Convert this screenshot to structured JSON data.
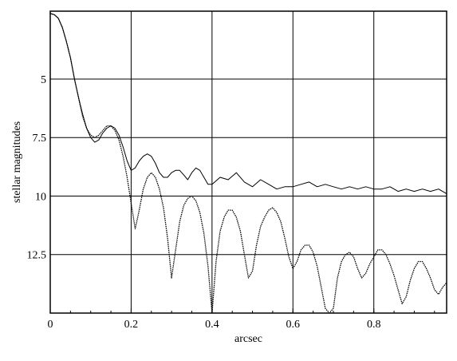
{
  "chart_data": {
    "type": "line",
    "title": "",
    "xlabel": "arcsec",
    "ylabel": "stellar magnitudes",
    "xlim": [
      0,
      0.98
    ],
    "ylim": [
      15,
      2.1
    ],
    "y_inverted": true,
    "grid": true,
    "x_ticks": [
      0,
      0.2,
      0.4,
      0.6,
      0.8
    ],
    "x_tick_labels": [
      "0",
      "0.2",
      "0.4",
      "0.6",
      "0.8"
    ],
    "y_ticks": [
      5,
      7.5,
      10,
      12.5
    ],
    "y_tick_labels": [
      "5",
      "7.5",
      "10",
      "12.5"
    ],
    "series": [
      {
        "style": "solid",
        "x": [
          0,
          0.01,
          0.02,
          0.03,
          0.04,
          0.05,
          0.06,
          0.07,
          0.08,
          0.09,
          0.1,
          0.11,
          0.12,
          0.13,
          0.14,
          0.15,
          0.16,
          0.17,
          0.18,
          0.19,
          0.2,
          0.21,
          0.22,
          0.23,
          0.24,
          0.25,
          0.26,
          0.27,
          0.28,
          0.29,
          0.3,
          0.31,
          0.32,
          0.33,
          0.34,
          0.35,
          0.36,
          0.37,
          0.38,
          0.39,
          0.4,
          0.42,
          0.44,
          0.46,
          0.48,
          0.5,
          0.52,
          0.54,
          0.56,
          0.58,
          0.6,
          0.62,
          0.64,
          0.66,
          0.68,
          0.7,
          0.72,
          0.74,
          0.76,
          0.78,
          0.8,
          0.82,
          0.84,
          0.86,
          0.88,
          0.9,
          0.92,
          0.94,
          0.96,
          0.98
        ],
        "y": [
          2.2,
          2.25,
          2.4,
          2.8,
          3.4,
          4.1,
          5.0,
          5.8,
          6.5,
          7.1,
          7.5,
          7.7,
          7.6,
          7.3,
          7.1,
          7.0,
          7.1,
          7.4,
          7.9,
          8.5,
          8.9,
          8.8,
          8.5,
          8.3,
          8.2,
          8.3,
          8.6,
          9.0,
          9.2,
          9.2,
          9.0,
          8.9,
          8.9,
          9.1,
          9.3,
          9.0,
          8.8,
          8.9,
          9.2,
          9.5,
          9.5,
          9.2,
          9.3,
          9.0,
          9.4,
          9.6,
          9.3,
          9.5,
          9.7,
          9.6,
          9.6,
          9.5,
          9.4,
          9.6,
          9.5,
          9.6,
          9.7,
          9.6,
          9.7,
          9.6,
          9.7,
          9.7,
          9.6,
          9.8,
          9.7,
          9.8,
          9.7,
          9.8,
          9.7,
          9.9
        ]
      },
      {
        "style": "dotted",
        "x": [
          0,
          0.01,
          0.02,
          0.03,
          0.04,
          0.05,
          0.06,
          0.07,
          0.08,
          0.09,
          0.1,
          0.11,
          0.12,
          0.13,
          0.14,
          0.15,
          0.16,
          0.17,
          0.18,
          0.19,
          0.2,
          0.21,
          0.22,
          0.23,
          0.24,
          0.25,
          0.26,
          0.27,
          0.28,
          0.29,
          0.3,
          0.31,
          0.32,
          0.33,
          0.34,
          0.35,
          0.36,
          0.37,
          0.38,
          0.39,
          0.4,
          0.41,
          0.42,
          0.43,
          0.44,
          0.45,
          0.46,
          0.47,
          0.48,
          0.49,
          0.5,
          0.51,
          0.52,
          0.53,
          0.54,
          0.55,
          0.56,
          0.57,
          0.58,
          0.59,
          0.6,
          0.61,
          0.62,
          0.63,
          0.64,
          0.65,
          0.66,
          0.67,
          0.68,
          0.69,
          0.7,
          0.71,
          0.72,
          0.73,
          0.74,
          0.75,
          0.76,
          0.77,
          0.78,
          0.79,
          0.8,
          0.81,
          0.82,
          0.83,
          0.84,
          0.85,
          0.86,
          0.87,
          0.88,
          0.89,
          0.9,
          0.91,
          0.92,
          0.93,
          0.94,
          0.95,
          0.96,
          0.97,
          0.98
        ],
        "y": [
          2.2,
          2.25,
          2.4,
          2.8,
          3.4,
          4.1,
          5.0,
          5.8,
          6.6,
          7.1,
          7.4,
          7.5,
          7.4,
          7.2,
          7.0,
          7.0,
          7.2,
          7.6,
          8.3,
          9.2,
          10.3,
          11.4,
          10.6,
          9.7,
          9.2,
          9.0,
          9.2,
          9.7,
          10.5,
          11.8,
          13.5,
          12.3,
          11.1,
          10.4,
          10.1,
          10.0,
          10.2,
          10.7,
          11.6,
          13.0,
          15.0,
          12.8,
          11.5,
          10.9,
          10.6,
          10.6,
          10.9,
          11.5,
          12.5,
          13.5,
          13.2,
          12.1,
          11.3,
          10.9,
          10.6,
          10.5,
          10.7,
          11.1,
          11.8,
          12.6,
          13.1,
          12.8,
          12.3,
          12.1,
          12.1,
          12.4,
          13.0,
          13.9,
          14.8,
          15.0,
          14.8,
          13.5,
          12.8,
          12.5,
          12.4,
          12.6,
          13.1,
          13.5,
          13.3,
          12.9,
          12.6,
          12.3,
          12.3,
          12.5,
          12.9,
          13.4,
          14.0,
          14.6,
          14.3,
          13.6,
          13.1,
          12.8,
          12.8,
          13.1,
          13.5,
          14.0,
          14.2,
          13.9,
          13.7
        ]
      }
    ]
  }
}
